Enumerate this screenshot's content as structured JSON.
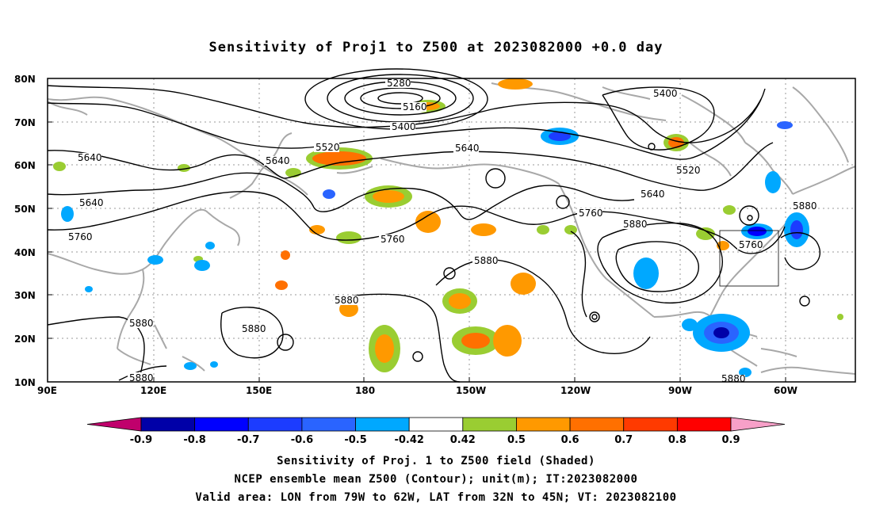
{
  "title": "Sensitivity of Proj1 to Z500 at 2023082000 +0.0 day",
  "lat_labels": [
    "80N",
    "70N",
    "60N",
    "50N",
    "40N",
    "30N",
    "20N",
    "10N"
  ],
  "lon_labels": [
    "90E",
    "120E",
    "150E",
    "180",
    "150W",
    "120W",
    "90W",
    "60W"
  ],
  "contour_labels": [
    "5280",
    "5160",
    "5400",
    "5400",
    "5520",
    "5640",
    "5640",
    "5640",
    "5520",
    "5640",
    "5760",
    "5760",
    "5640",
    "5760",
    "5880",
    "5880",
    "5760",
    "5880",
    "5880",
    "5880",
    "5880",
    "5880",
    "5880"
  ],
  "colorbar": {
    "levels": [
      "-0.9",
      "-0.8",
      "-0.7",
      "-0.6",
      "-0.5",
      "-0.42",
      "0.42",
      "0.5",
      "0.6",
      "0.7",
      "0.8",
      "0.9"
    ],
    "colors": [
      "#c0006c",
      "#0000a8",
      "#0000ff",
      "#1c3cff",
      "#2a64ff",
      "#00a8ff",
      "#ffffff",
      "#9acd32",
      "#ff9900",
      "#ff7000",
      "#ff3a00",
      "#ff0000",
      "#f7a0c8"
    ]
  },
  "captions": [
    "Sensitivity of Proj. 1 to Z500 field (Shaded)",
    "NCEP ensemble mean Z500 (Contour); unit(m); IT:2023082000",
    "Valid area: LON from 79W to 62W, LAT from 32N to 45N; VT: 2023082100"
  ]
}
